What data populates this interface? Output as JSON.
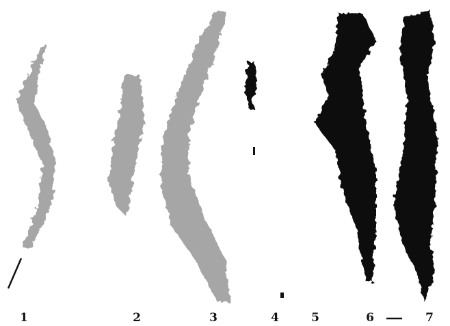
{
  "labels": [
    "1",
    "2",
    "3",
    "4",
    "5",
    "6",
    "7"
  ]
}
